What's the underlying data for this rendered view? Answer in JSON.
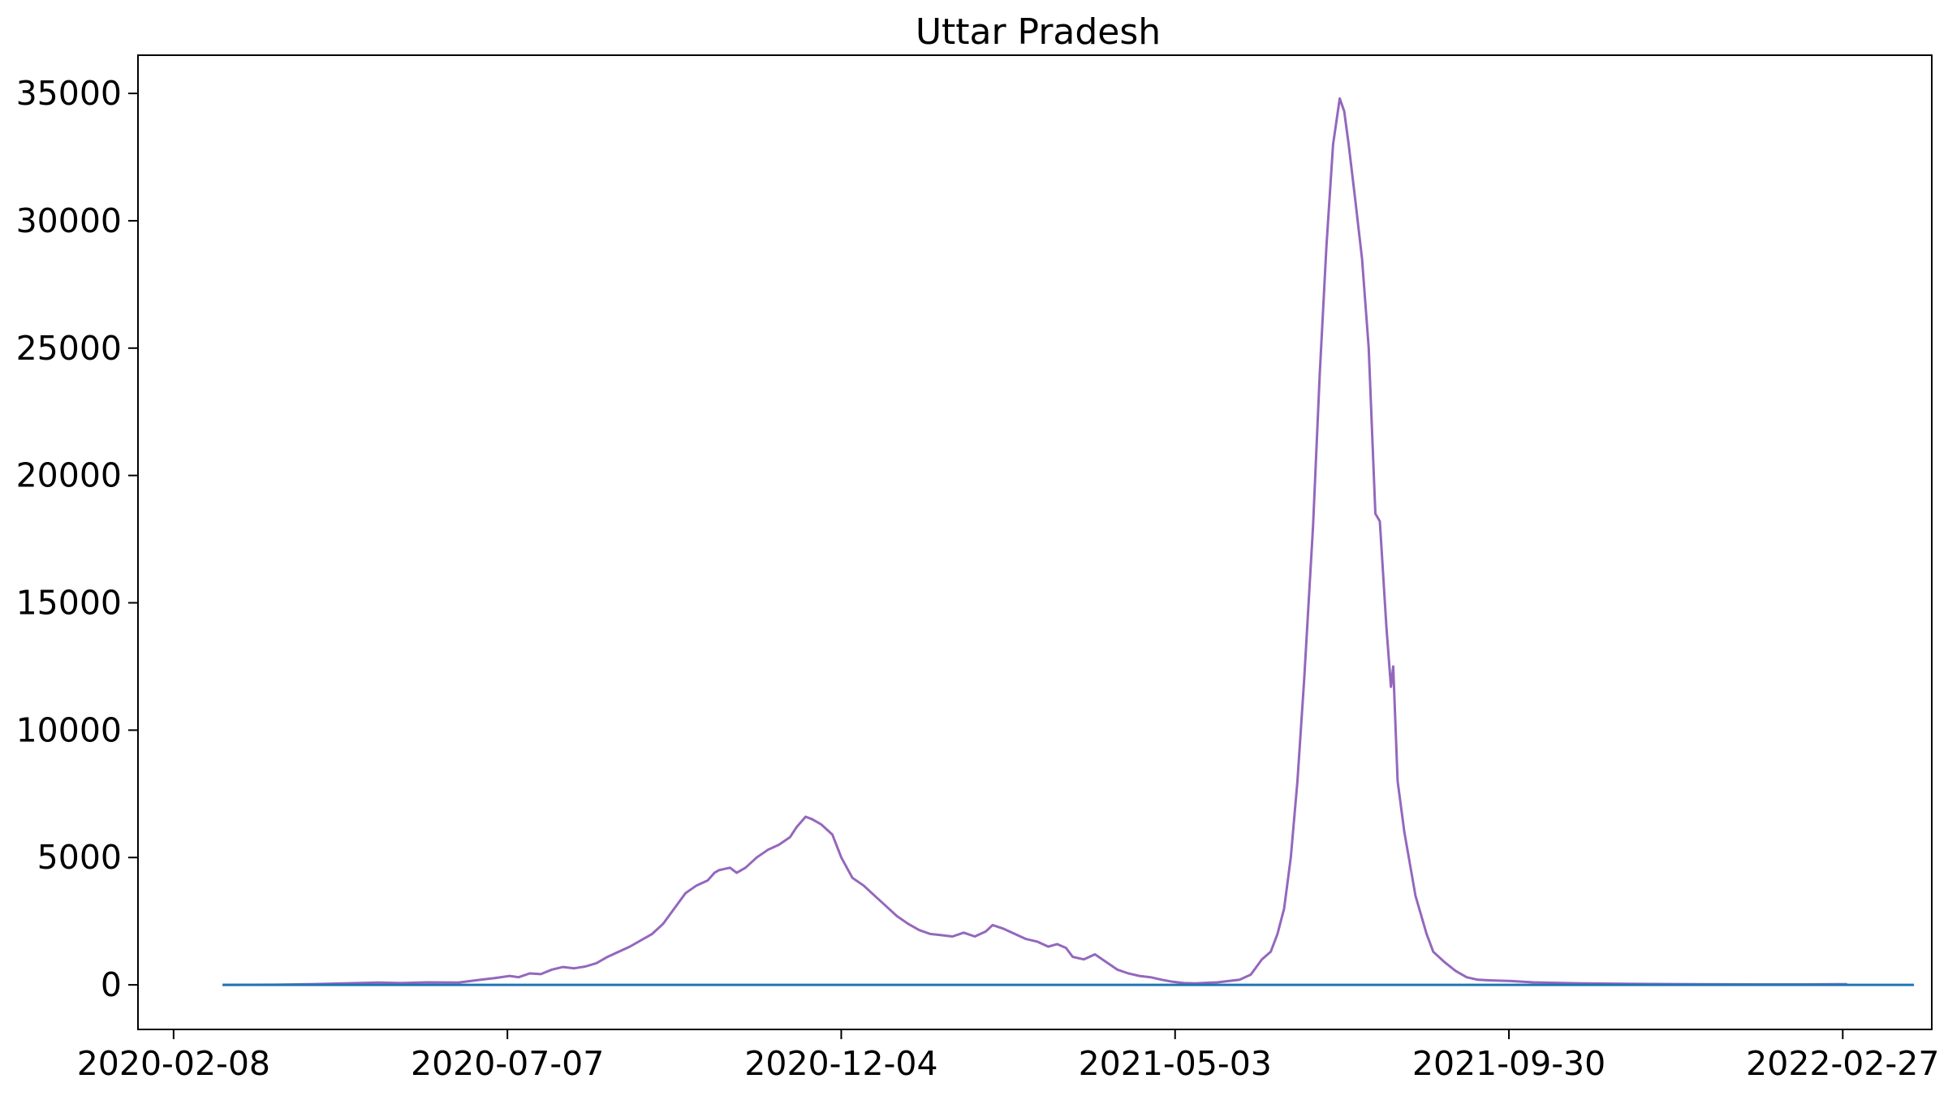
{
  "chart_data": {
    "type": "line",
    "title": "Uttar Pradesh",
    "xlabel": "",
    "ylabel": "",
    "x_axis_type": "date",
    "xlim": [
      "2020-01-23",
      "2022-04-08"
    ],
    "ylim": [
      -1750,
      36500
    ],
    "x_ticks": [
      "2020-02-08",
      "2020-07-07",
      "2020-12-04",
      "2021-05-03",
      "2021-09-30",
      "2022-02-27"
    ],
    "y_ticks": [
      0,
      5000,
      10000,
      15000,
      20000,
      25000,
      30000,
      35000
    ],
    "grid": false,
    "legend": "none",
    "series": [
      {
        "color": "#9467bd",
        "points": [
          [
            "2020-03-01",
            0
          ],
          [
            "2020-03-25",
            5
          ],
          [
            "2020-04-10",
            30
          ],
          [
            "2020-04-25",
            60
          ],
          [
            "2020-05-10",
            90
          ],
          [
            "2020-05-20",
            70
          ],
          [
            "2020-06-01",
            100
          ],
          [
            "2020-06-15",
            90
          ],
          [
            "2020-06-25",
            200
          ],
          [
            "2020-07-01",
            260
          ],
          [
            "2020-07-08",
            350
          ],
          [
            "2020-07-12",
            300
          ],
          [
            "2020-07-17",
            450
          ],
          [
            "2020-07-22",
            420
          ],
          [
            "2020-07-27",
            600
          ],
          [
            "2020-08-01",
            700
          ],
          [
            "2020-08-06",
            650
          ],
          [
            "2020-08-11",
            720
          ],
          [
            "2020-08-16",
            850
          ],
          [
            "2020-08-21",
            1100
          ],
          [
            "2020-08-31",
            1500
          ],
          [
            "2020-09-10",
            2000
          ],
          [
            "2020-09-15",
            2400
          ],
          [
            "2020-09-20",
            3000
          ],
          [
            "2020-09-25",
            3600
          ],
          [
            "2020-09-30",
            3900
          ],
          [
            "2020-10-05",
            4100
          ],
          [
            "2020-10-08",
            4400
          ],
          [
            "2020-10-10",
            4500
          ],
          [
            "2020-10-15",
            4600
          ],
          [
            "2020-10-18",
            4400
          ],
          [
            "2020-10-22",
            4600
          ],
          [
            "2020-10-27",
            5000
          ],
          [
            "2020-11-01",
            5300
          ],
          [
            "2020-11-06",
            5500
          ],
          [
            "2020-11-11",
            5800
          ],
          [
            "2020-11-14",
            6200
          ],
          [
            "2020-11-18",
            6600
          ],
          [
            "2020-11-21",
            6500
          ],
          [
            "2020-11-25",
            6300
          ],
          [
            "2020-11-30",
            5900
          ],
          [
            "2020-12-04",
            5000
          ],
          [
            "2020-12-09",
            4200
          ],
          [
            "2020-12-14",
            3900
          ],
          [
            "2020-12-19",
            3500
          ],
          [
            "2020-12-24",
            3100
          ],
          [
            "2020-12-29",
            2700
          ],
          [
            "2021-01-03",
            2400
          ],
          [
            "2021-01-08",
            2150
          ],
          [
            "2021-01-13",
            2000
          ],
          [
            "2021-01-18",
            1950
          ],
          [
            "2021-01-23",
            1900
          ],
          [
            "2021-01-28",
            2050
          ],
          [
            "2021-02-02",
            1900
          ],
          [
            "2021-02-07",
            2100
          ],
          [
            "2021-02-10",
            2350
          ],
          [
            "2021-02-15",
            2200
          ],
          [
            "2021-02-20",
            2000
          ],
          [
            "2021-02-25",
            1800
          ],
          [
            "2021-03-02",
            1700
          ],
          [
            "2021-03-07",
            1500
          ],
          [
            "2021-03-11",
            1600
          ],
          [
            "2021-03-15",
            1450
          ],
          [
            "2021-03-18",
            1100
          ],
          [
            "2021-03-23",
            1000
          ],
          [
            "2021-03-28",
            1200
          ],
          [
            "2021-04-02",
            900
          ],
          [
            "2021-04-07",
            600
          ],
          [
            "2021-04-12",
            450
          ],
          [
            "2021-04-17",
            350
          ],
          [
            "2021-04-22",
            300
          ],
          [
            "2021-04-27",
            200
          ],
          [
            "2021-05-02",
            120
          ],
          [
            "2021-05-07",
            70
          ],
          [
            "2021-05-12",
            60
          ],
          [
            "2021-05-17",
            80
          ],
          [
            "2021-05-22",
            100
          ],
          [
            "2021-05-27",
            150
          ],
          [
            "2021-06-01",
            200
          ],
          [
            "2021-06-06",
            400
          ],
          [
            "2021-06-11",
            1000
          ],
          [
            "2021-06-15",
            1300
          ],
          [
            "2021-06-18",
            2000
          ],
          [
            "2021-06-21",
            3000
          ],
          [
            "2021-06-24",
            5000
          ],
          [
            "2021-06-27",
            8000
          ],
          [
            "2021-06-30",
            12000
          ],
          [
            "2021-07-04",
            18000
          ],
          [
            "2021-07-07",
            24000
          ],
          [
            "2021-07-10",
            29000
          ],
          [
            "2021-07-13",
            33000
          ],
          [
            "2021-07-16",
            34800
          ],
          [
            "2021-07-18",
            34300
          ],
          [
            "2021-07-20",
            33000
          ],
          [
            "2021-07-23",
            30800
          ],
          [
            "2021-07-26",
            28500
          ],
          [
            "2021-07-29",
            25000
          ],
          [
            "2021-08-01",
            18500
          ],
          [
            "2021-08-03",
            18200
          ],
          [
            "2021-08-06",
            14000
          ],
          [
            "2021-08-08",
            11700
          ],
          [
            "2021-08-09",
            12500
          ],
          [
            "2021-08-11",
            8000
          ],
          [
            "2021-08-14",
            6000
          ],
          [
            "2021-08-19",
            3500
          ],
          [
            "2021-08-24",
            2000
          ],
          [
            "2021-08-27",
            1300
          ],
          [
            "2021-09-01",
            900
          ],
          [
            "2021-09-06",
            550
          ],
          [
            "2021-09-11",
            300
          ],
          [
            "2021-09-16",
            200
          ],
          [
            "2021-09-21",
            180
          ],
          [
            "2021-10-01",
            150
          ],
          [
            "2021-10-11",
            100
          ],
          [
            "2021-10-21",
            80
          ],
          [
            "2021-11-01",
            60
          ],
          [
            "2021-11-20",
            40
          ],
          [
            "2021-12-20",
            25
          ],
          [
            "2022-01-20",
            20
          ],
          [
            "2022-02-10",
            20
          ],
          [
            "2022-02-25",
            30
          ],
          [
            "2022-03-01",
            30
          ]
        ]
      },
      {
        "color": "#1f77b4",
        "points": [
          [
            "2020-03-01",
            0
          ],
          [
            "2022-03-31",
            0
          ]
        ]
      }
    ]
  }
}
